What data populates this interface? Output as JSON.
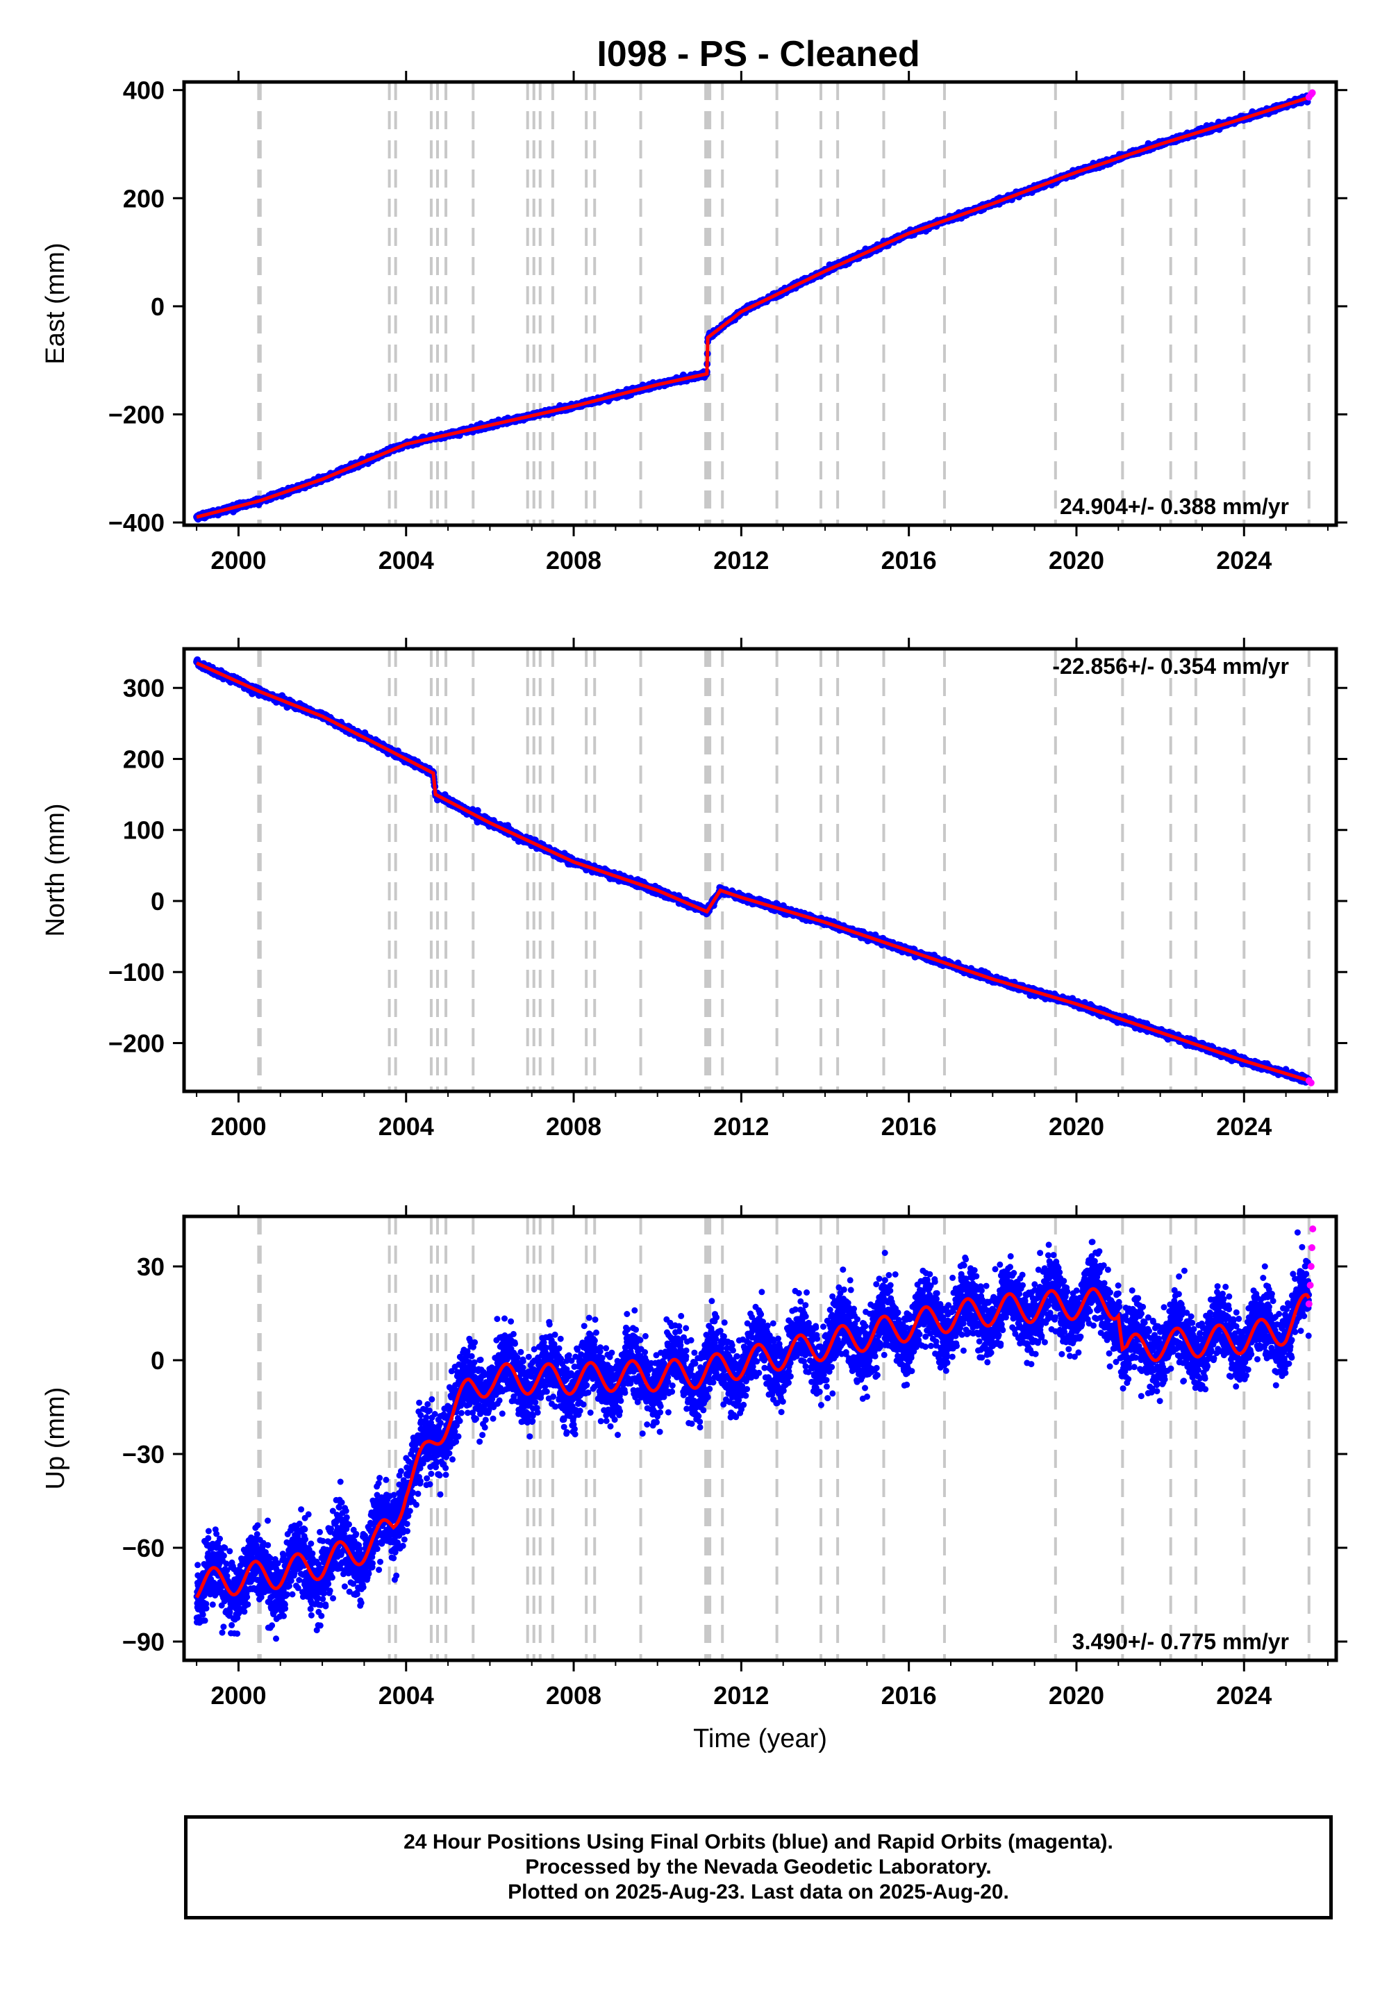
{
  "title": "I098  - PS - Cleaned",
  "footer": {
    "line1": "24 Hour Positions Using Final Orbits (blue) and Rapid Orbits (magenta).",
    "line2": "Processed by the Nevada Geodetic Laboratory.",
    "line3": "Plotted on 2025-Aug-23. Last data on 2025-Aug-20."
  },
  "colors": {
    "final_orbits": "#0000ff",
    "rapid_orbits": "#ff00ff",
    "model": "#ff0000",
    "steps": "#c8c8c8"
  },
  "chart_data": [
    {
      "type": "scatter",
      "component": "East",
      "ylabel": "East (mm)",
      "xlabel": "",
      "xlim": [
        1998.7,
        2026.2
      ],
      "ylim": [
        -405,
        415
      ],
      "xticks": [
        2000,
        2004,
        2008,
        2012,
        2016,
        2020,
        2024
      ],
      "yticks": [
        -400,
        -200,
        0,
        200,
        400
      ],
      "rate_text": "24.904+/- 0.388 mm/yr",
      "rate_position": "bottom-right",
      "series": [
        {
          "role": "final_orbits",
          "x": [
            1999.0,
            2000.5,
            2002.0,
            2004.0,
            2006.0,
            2008.0,
            2010.0,
            2011.18,
            2011.2,
            2012.0,
            2014.0,
            2016.0,
            2018.0,
            2020.0,
            2022.0,
            2024.0,
            2025.5
          ],
          "y": [
            -390,
            -360,
            -320,
            -255,
            -220,
            -185,
            -145,
            -125,
            -58,
            -10,
            65,
            135,
            190,
            248,
            300,
            348,
            385
          ]
        },
        {
          "role": "rapid_orbits",
          "x": [
            2025.55,
            2025.6,
            2025.63
          ],
          "y": [
            387,
            392,
            395
          ]
        }
      ]
    },
    {
      "type": "scatter",
      "component": "North",
      "ylabel": "North (mm)",
      "xlabel": "",
      "xlim": [
        1998.7,
        2026.2
      ],
      "ylim": [
        -268,
        355
      ],
      "xticks": [
        2000,
        2004,
        2008,
        2012,
        2016,
        2020,
        2024
      ],
      "yticks": [
        -200,
        -100,
        0,
        100,
        200,
        300
      ],
      "rate_text": "-22.856+/- 0.354 mm/yr",
      "rate_position": "top-right",
      "series": [
        {
          "role": "final_orbits",
          "x": [
            1999.0,
            2000.5,
            2002.0,
            2003.5,
            2004.65,
            2004.7,
            2006.0,
            2008.0,
            2010.0,
            2011.18,
            2011.5,
            2012.0,
            2014.0,
            2016.0,
            2018.0,
            2020.0,
            2022.0,
            2024.0,
            2025.5
          ],
          "y": [
            335,
            295,
            260,
            215,
            180,
            150,
            110,
            55,
            15,
            -15,
            15,
            5,
            -30,
            -70,
            -110,
            -145,
            -185,
            -225,
            -252
          ]
        },
        {
          "role": "rapid_orbits",
          "x": [
            2025.55,
            2025.6
          ],
          "y": [
            -253,
            -256
          ]
        }
      ]
    },
    {
      "type": "scatter",
      "component": "Up",
      "ylabel": "Up (mm)",
      "xlabel": "Time (year)",
      "xlim": [
        1998.7,
        2026.2
      ],
      "ylim": [
        -96,
        46
      ],
      "xticks": [
        2000,
        2004,
        2008,
        2012,
        2016,
        2020,
        2024
      ],
      "yticks": [
        -90,
        -60,
        -30,
        0,
        30
      ],
      "rate_text": "3.490+/- 0.775 mm/yr",
      "rate_position": "bottom-right",
      "series": [
        {
          "role": "model",
          "x": [
            1999.0,
            2000.0,
            2001.0,
            2002.0,
            2003.0,
            2003.3,
            2003.7,
            2004.0,
            2004.5,
            2005.0,
            2005.5,
            2006.0,
            2007.0,
            2008.0,
            2009.0,
            2010.0,
            2011.0,
            2012.0,
            2013.0,
            2014.0,
            2015.0,
            2016.0,
            2017.0,
            2018.0,
            2019.0,
            2020.0,
            2021.0,
            2021.1,
            2021.2,
            2022.0,
            2023.0,
            2024.0,
            2025.0,
            2025.5
          ],
          "y": [
            -72,
            -70,
            -68,
            -65,
            -60,
            -58,
            -52,
            -40,
            -30,
            -18,
            -10,
            -6,
            -6,
            -6,
            -5,
            -5,
            -4,
            -1,
            2,
            5,
            8,
            11,
            14,
            16,
            17,
            18,
            18,
            5,
            3,
            5,
            6,
            7,
            10,
            17
          ]
        },
        {
          "role": "rapid_orbits",
          "x": [
            2025.55,
            2025.58,
            2025.6,
            2025.62,
            2025.64
          ],
          "y": [
            18,
            24,
            30,
            36,
            42
          ]
        }
      ]
    }
  ],
  "steps": [
    2000.48,
    2000.5,
    2000.52,
    2003.6,
    2003.75,
    2004.6,
    2004.75,
    2004.95,
    2005.6,
    2006.9,
    2007.05,
    2007.2,
    2007.5,
    2008.3,
    2008.5,
    2009.6,
    2011.15,
    2011.2,
    2011.25,
    2011.55,
    2012.85,
    2013.9,
    2014.3,
    2015.4,
    2016.85,
    2019.5,
    2021.1,
    2022.25,
    2022.85,
    2024.0,
    2025.55
  ]
}
